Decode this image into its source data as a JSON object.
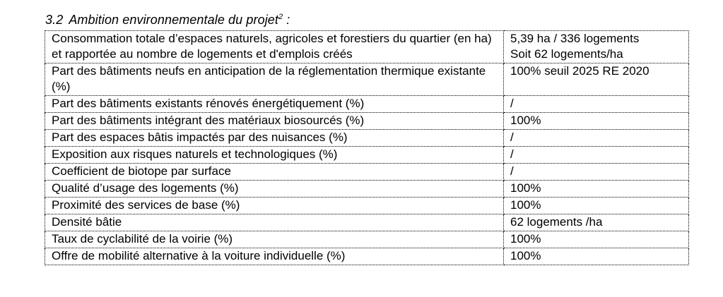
{
  "document": {
    "heading": {
      "number": "3.2",
      "title": "Ambition environnementale du projet",
      "superscript": "2",
      "suffix": ":"
    },
    "table": {
      "rows": [
        {
          "label": "Consommation totale d’espaces naturels, agricoles et forestiers du quartier (en ha) et rapportée au nombre de logements et d'emplois créés",
          "value": "5,39 ha / 336 logements",
          "value_line2": "Soit 62 logements/ha"
        },
        {
          "label": "Part des bâtiments neufs en anticipation de la réglementation thermique existante (%)",
          "value": "100% seuil 2025 RE 2020"
        },
        {
          "label": "Part des bâtiments existants rénovés énergétiquement (%)",
          "value": "/"
        },
        {
          "label": "Part des bâtiments intégrant des matériaux biosourcés (%)",
          "value": "100%"
        },
        {
          "label": "Part des espaces bâtis impactés par des nuisances (%)",
          "value": "/"
        },
        {
          "label": "Exposition aux risques naturels et technologiques (%)",
          "value": "/"
        },
        {
          "label": "Coefficient de biotope par surface",
          "value": "/"
        },
        {
          "label": "Qualité d’usage des logements (%)",
          "value": "100%"
        },
        {
          "label": "Proximité des services de base (%)",
          "value": "100%"
        },
        {
          "label": "Densité bâtie",
          "value": "62 logements /ha"
        },
        {
          "label": "Taux de cyclabilité de la voirie (%)",
          "value": "100%"
        },
        {
          "label": "Offre de mobilité alternative à la voiture individuelle (%)",
          "value": "100%"
        }
      ]
    },
    "colors": {
      "text": "#000000",
      "border": "#000000",
      "background": "#ffffff"
    }
  }
}
